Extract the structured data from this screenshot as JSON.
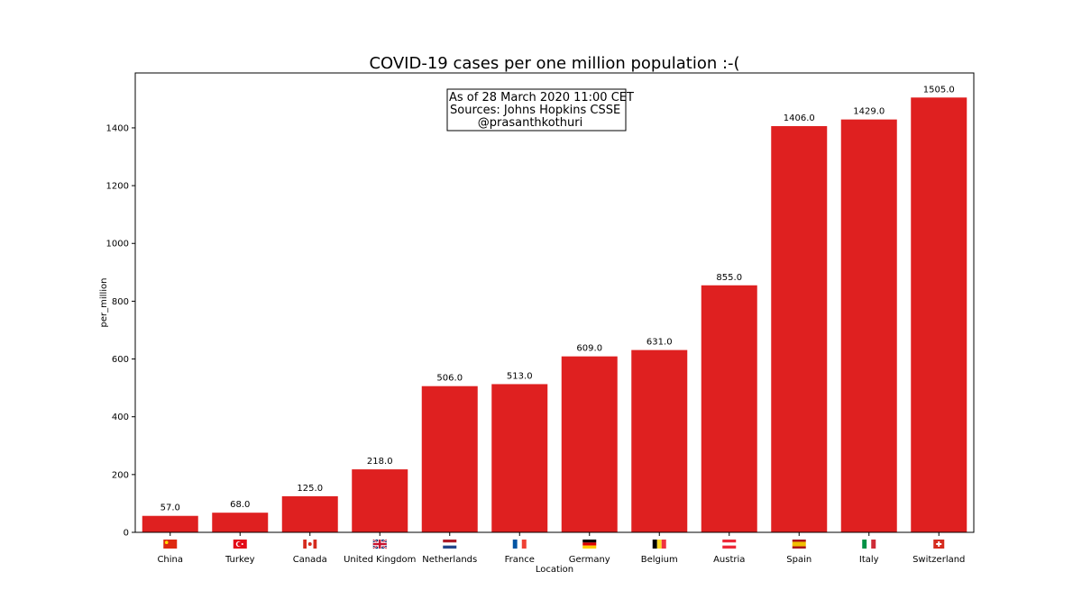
{
  "chart_data": {
    "type": "bar",
    "title": "COVID-19 cases per one million population :-(",
    "xlabel": "Location",
    "ylabel": "per_million",
    "ylim": [
      0,
      1590
    ],
    "yticks": [
      0,
      200,
      400,
      600,
      800,
      1000,
      1200,
      1400
    ],
    "ytick_labels": [
      "0",
      "200",
      "400",
      "600",
      "800",
      "1000",
      "1200",
      "1400"
    ],
    "categories": [
      "China",
      "Turkey",
      "Canada",
      "United Kingdom",
      "Netherlands",
      "France",
      "Germany",
      "Belgium",
      "Austria",
      "Spain",
      "Italy",
      "Switzerland"
    ],
    "values": [
      57.0,
      68.0,
      125.0,
      218.0,
      506.0,
      513.0,
      609.0,
      631.0,
      855.0,
      1406.0,
      1429.0,
      1505.0
    ],
    "value_labels": [
      "57.0",
      "68.0",
      "125.0",
      "218.0",
      "506.0",
      "513.0",
      "609.0",
      "631.0",
      "855.0",
      "1406.0",
      "1429.0",
      "1505.0"
    ],
    "flag_icons": [
      "china-flag-icon",
      "turkey-flag-icon",
      "canada-flag-icon",
      "uk-flag-icon",
      "netherlands-flag-icon",
      "france-flag-icon",
      "germany-flag-icon",
      "belgium-flag-icon",
      "austria-flag-icon",
      "spain-flag-icon",
      "italy-flag-icon",
      "switzerland-flag-icon"
    ],
    "bar_color": "#df2020",
    "grid": false,
    "annotation": {
      "line1": "As of 28 March 2020 11:00 CET",
      "line2": "Sources: Johns Hopkins CSSE",
      "line3": "@prasanthkothuri"
    }
  }
}
